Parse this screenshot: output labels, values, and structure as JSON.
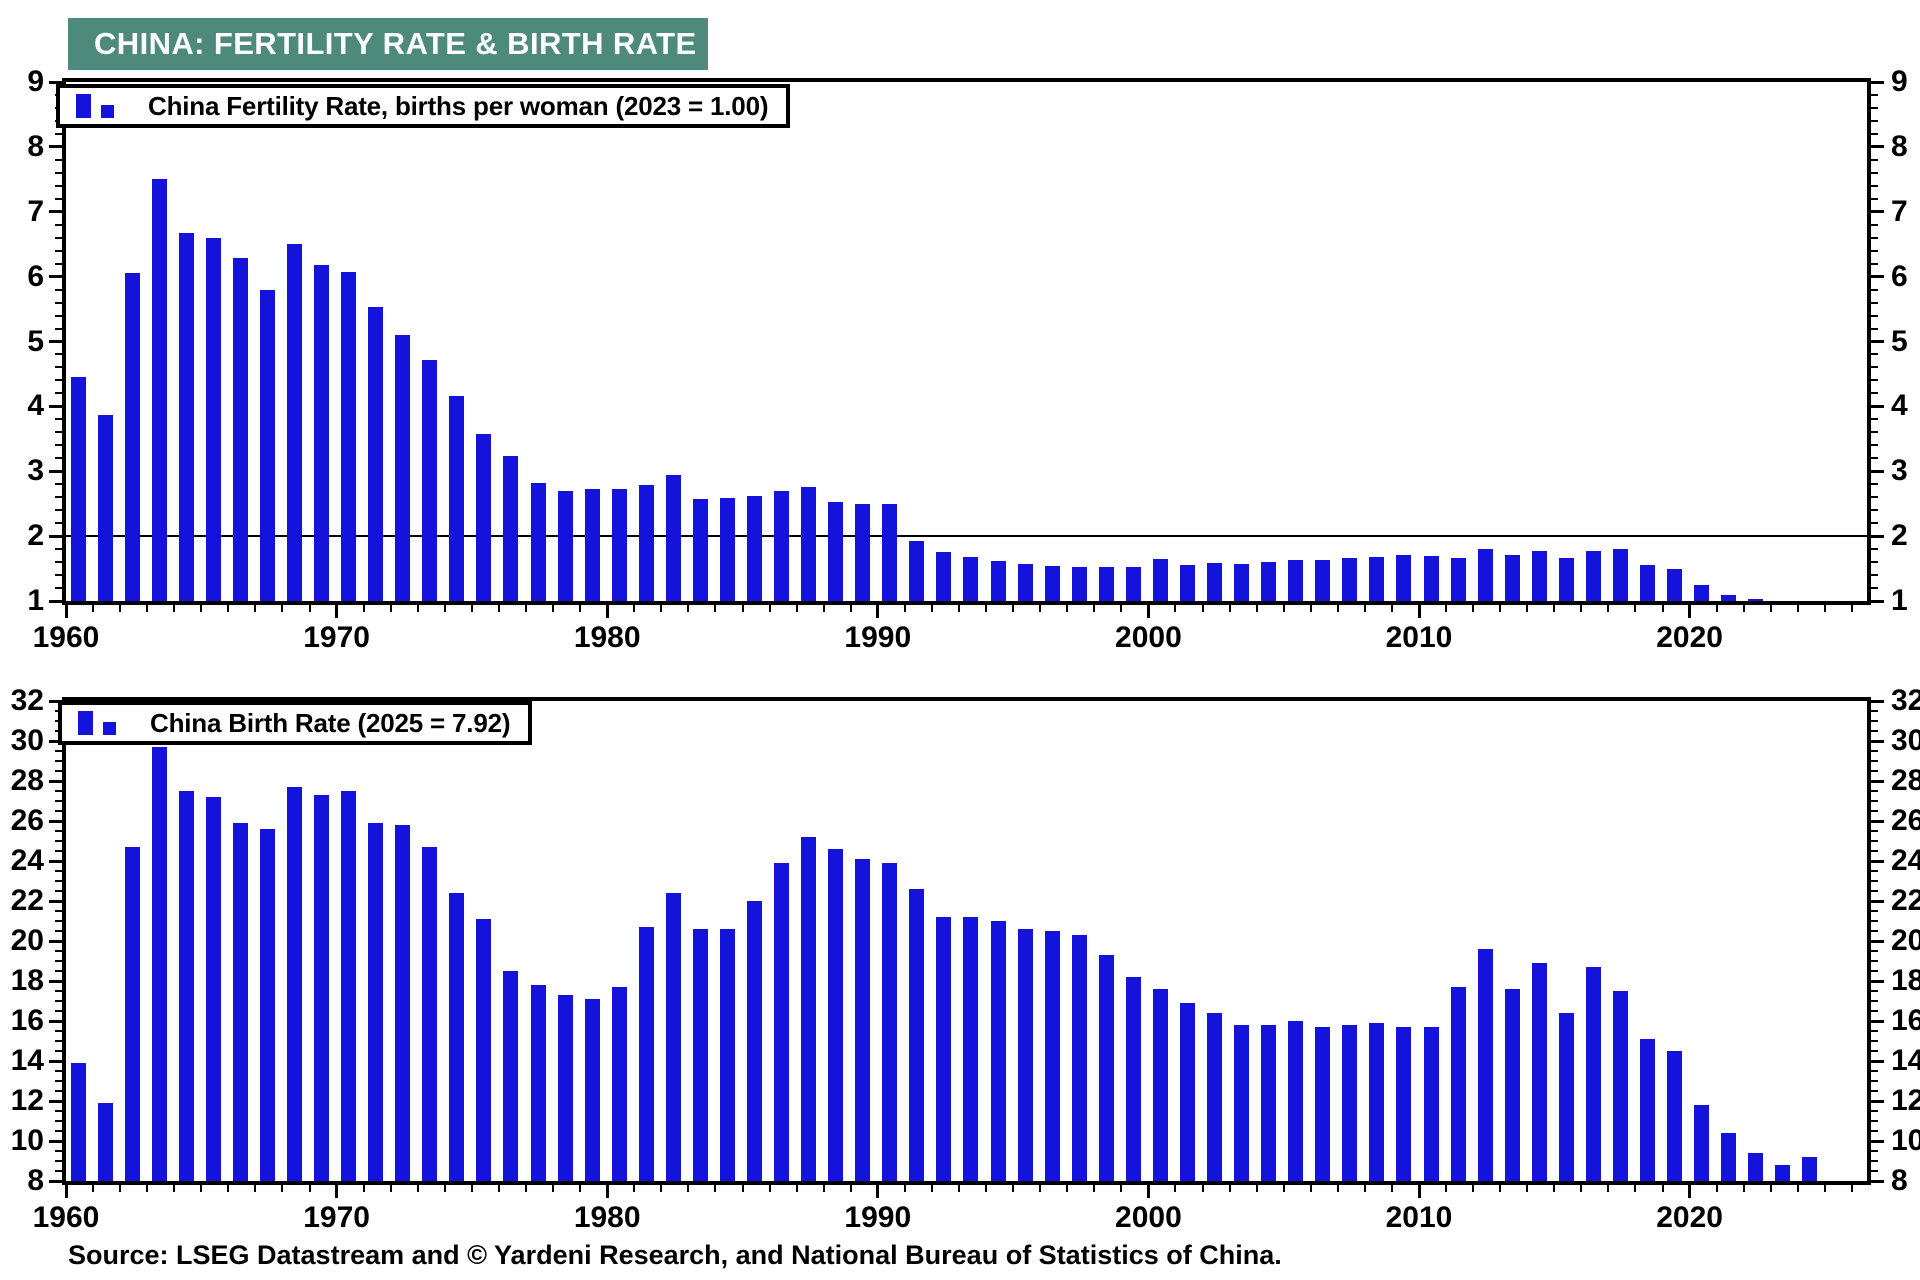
{
  "title": "CHINA: FERTILITY RATE & BIRTH RATE",
  "source_note": "Source: LSEG Datastream and © Yardeni Research, and National Bureau of Statistics of China.",
  "colors": {
    "bar": "#1313DB",
    "title_bg": "#4E8A7B",
    "title_text": "#FFFFFF",
    "axis": "#000000",
    "background": "#FFFFFF"
  },
  "chart_data": [
    {
      "type": "bar",
      "title": "China Fertility Rate, births per woman (2023 = 1.00)",
      "legend_position": "top-left",
      "grid": false,
      "x_start": 1960,
      "x": [
        1960,
        1961,
        1962,
        1963,
        1964,
        1965,
        1966,
        1967,
        1968,
        1969,
        1970,
        1971,
        1972,
        1973,
        1974,
        1975,
        1976,
        1977,
        1978,
        1979,
        1980,
        1981,
        1982,
        1983,
        1984,
        1985,
        1986,
        1987,
        1988,
        1989,
        1990,
        1991,
        1992,
        1993,
        1994,
        1995,
        1996,
        1997,
        1998,
        1999,
        2000,
        2001,
        2002,
        2003,
        2004,
        2005,
        2006,
        2007,
        2008,
        2009,
        2010,
        2011,
        2012,
        2013,
        2014,
        2015,
        2016,
        2017,
        2018,
        2019,
        2020,
        2021,
        2022,
        2023
      ],
      "values": [
        4.45,
        3.86,
        6.06,
        7.5,
        6.67,
        6.59,
        6.29,
        5.8,
        6.5,
        6.18,
        6.07,
        5.53,
        5.1,
        4.72,
        4.16,
        3.57,
        3.23,
        2.82,
        2.7,
        2.73,
        2.73,
        2.79,
        2.94,
        2.57,
        2.59,
        2.62,
        2.7,
        2.76,
        2.53,
        2.49,
        2.5,
        1.92,
        1.76,
        1.68,
        1.62,
        1.57,
        1.54,
        1.52,
        1.52,
        1.52,
        1.64,
        1.55,
        1.58,
        1.57,
        1.6,
        1.63,
        1.63,
        1.66,
        1.68,
        1.71,
        1.69,
        1.66,
        1.8,
        1.71,
        1.77,
        1.66,
        1.77,
        1.8,
        1.55,
        1.49,
        1.24,
        1.1,
        1.03,
        1.0
      ],
      "ylim": [
        1,
        9
      ],
      "y_major_step": 1,
      "y_minor_step": 0.2,
      "x_major_ticks": [
        1960,
        1970,
        1980,
        1990,
        2000,
        2010,
        2020
      ],
      "x_axis_end": 2026,
      "reference_line": 2.0,
      "ylabel": "",
      "xlabel": ""
    },
    {
      "type": "bar",
      "title": "China Birth Rate (2025 = 7.92)",
      "legend_position": "top-left",
      "grid": false,
      "x_start": 1960,
      "x": [
        1960,
        1961,
        1962,
        1963,
        1964,
        1965,
        1966,
        1967,
        1968,
        1969,
        1970,
        1971,
        1972,
        1973,
        1974,
        1975,
        1976,
        1977,
        1978,
        1979,
        1980,
        1981,
        1982,
        1983,
        1984,
        1985,
        1986,
        1987,
        1988,
        1989,
        1990,
        1991,
        1992,
        1993,
        1994,
        1995,
        1996,
        1997,
        1998,
        1999,
        2000,
        2001,
        2002,
        2003,
        2004,
        2005,
        2006,
        2007,
        2008,
        2009,
        2010,
        2011,
        2012,
        2013,
        2014,
        2015,
        2016,
        2017,
        2018,
        2019,
        2020,
        2021,
        2022,
        2023,
        2024,
        2025
      ],
      "values": [
        13.9,
        11.9,
        24.7,
        29.7,
        27.5,
        27.2,
        25.9,
        25.6,
        27.7,
        27.3,
        27.5,
        25.9,
        25.8,
        24.7,
        22.4,
        21.1,
        18.5,
        17.8,
        17.3,
        17.1,
        17.7,
        20.7,
        22.4,
        20.6,
        20.6,
        22.0,
        23.9,
        25.2,
        24.6,
        24.1,
        23.9,
        22.6,
        21.2,
        21.2,
        21.0,
        20.6,
        20.5,
        20.3,
        19.3,
        18.2,
        17.6,
        16.9,
        16.4,
        15.8,
        15.8,
        16.0,
        15.7,
        15.8,
        15.9,
        15.7,
        15.7,
        17.7,
        19.6,
        17.6,
        18.9,
        16.4,
        18.7,
        17.5,
        15.1,
        14.5,
        11.8,
        10.4,
        9.4,
        8.8,
        9.2,
        7.92
      ],
      "ylim": [
        8,
        32
      ],
      "y_major_step": 2,
      "y_minor_step": 0.5,
      "x_major_ticks": [
        1960,
        1970,
        1980,
        1990,
        2000,
        2010,
        2020
      ],
      "x_axis_end": 2026,
      "reference_line": null,
      "ylabel": "",
      "xlabel": ""
    }
  ]
}
